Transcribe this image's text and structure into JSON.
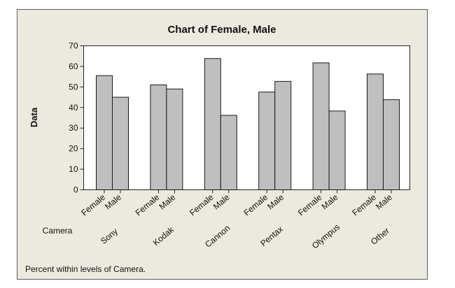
{
  "chart_data": {
    "type": "bar",
    "title": "Chart of Female, Male",
    "ylabel": "Data",
    "xgroup_label": "Camera",
    "footnote": "Percent within levels of Camera.",
    "ylim": [
      0,
      70
    ],
    "yticks": [
      0,
      10,
      20,
      30,
      40,
      50,
      60,
      70
    ],
    "categories": [
      "Sony",
      "Kodak",
      "Cannon",
      "Pentax",
      "Olympus",
      "Other"
    ],
    "series": [
      {
        "name": "Female",
        "values": [
          55.5,
          51,
          63.8,
          47.5,
          61.7,
          56.3
        ]
      },
      {
        "name": "Male",
        "values": [
          45,
          49,
          36.2,
          52.7,
          38.3,
          43.8
        ]
      }
    ],
    "grid": false
  }
}
